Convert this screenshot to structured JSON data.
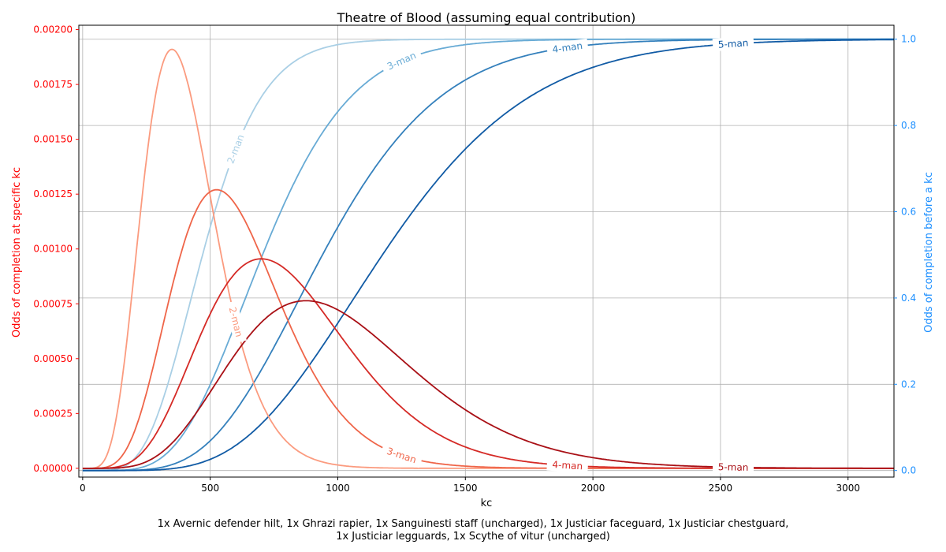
{
  "chart_data": {
    "type": "line",
    "title": "Theatre of Blood (assuming equal contribution)",
    "xlabel": "kc",
    "ylabel_left": "Odds of completion at specific kc",
    "ylabel_right": "Odds of completion before a kc",
    "xlim": [
      -15,
      3180
    ],
    "ylim_left": [
      -4e-05,
      0.00202
    ],
    "ylim_right": [
      -0.0152,
      1.0324
    ],
    "x_ticks": [
      0,
      500,
      1000,
      1500,
      2000,
      2500,
      3000
    ],
    "y_ticks_left": [
      "0.00000",
      "0.00025",
      "0.00050",
      "0.00075",
      "0.00100",
      "0.00125",
      "0.00150",
      "0.00175",
      "0.00200"
    ],
    "y_ticks_right": [
      "0.0",
      "0.2",
      "0.4",
      "0.6",
      "0.8",
      "1.0"
    ],
    "grid": true,
    "colors": {
      "left_axis": "#ff0000",
      "right_axis": "#1e90ff",
      "pmf": [
        "#fb9b7f",
        "#ef6549",
        "#d52a26",
        "#a91016"
      ],
      "cdf": [
        "#a9cfe5",
        "#68abd5",
        "#3480bc",
        "#115ba5"
      ]
    },
    "series": [
      {
        "axis": "left",
        "label": "2-man",
        "peak_kc": 350,
        "peak_odds": 0.00191
      },
      {
        "axis": "left",
        "label": "3-man",
        "peak_kc": 525,
        "peak_odds": 0.00127
      },
      {
        "axis": "left",
        "label": "4-man",
        "peak_kc": 700,
        "peak_odds": 0.000955
      },
      {
        "axis": "left",
        "label": "5-man",
        "peak_kc": 875,
        "peak_odds": 0.000764
      },
      {
        "axis": "right",
        "label": "2-man",
        "median_kc": 470
      },
      {
        "axis": "right",
        "label": "3-man",
        "median_kc": 705
      },
      {
        "axis": "right",
        "label": "4-man",
        "median_kc": 940
      },
      {
        "axis": "right",
        "label": "5-man",
        "median_kc": 1175
      }
    ],
    "annotations": [
      {
        "text": "2-man",
        "series": 0,
        "x": 600
      },
      {
        "text": "3-man",
        "series": 1,
        "x": 1250
      },
      {
        "text": "4-man",
        "series": 2,
        "x": 1900
      },
      {
        "text": "5-man",
        "series": 3,
        "x": 2550
      },
      {
        "text": "2-man",
        "series": 4,
        "x": 600
      },
      {
        "text": "3-man",
        "series": 5,
        "x": 1250
      },
      {
        "text": "4-man",
        "series": 6,
        "x": 1900
      },
      {
        "text": "5-man",
        "series": 7,
        "x": 2550
      }
    ]
  },
  "footer": {
    "line1": "1x Avernic defender hilt, 1x Ghrazi rapier, 1x Sanguinesti staff (uncharged), 1x Justiciar faceguard, 1x Justiciar chestguard,",
    "line2": "1x Justiciar legguards, 1x Scythe of vitur (uncharged)"
  }
}
